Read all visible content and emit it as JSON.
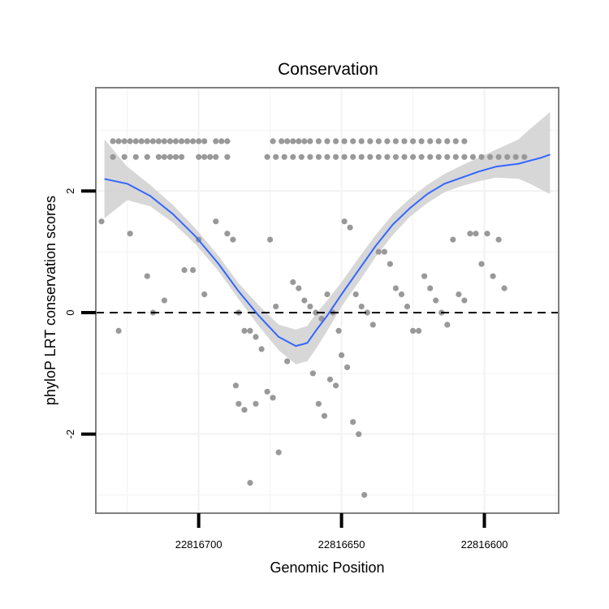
{
  "chart_data": {
    "type": "scatter",
    "title": "Conservation",
    "xlabel": "Genomic Position",
    "ylabel": "phyloP LRT conservation scores",
    "xlim": [
      22816736,
      22816574
    ],
    "ylim": [
      -3.3,
      3.7
    ],
    "x_reversed": true,
    "x_ticks": [
      22816700,
      22816650,
      22816600
    ],
    "x_tick_labels": [
      "22816700",
      "22816650",
      "22816600"
    ],
    "y_ticks": [
      -2,
      0,
      2
    ],
    "y_tick_labels": [
      "-2",
      "0",
      "2"
    ],
    "reference_line": {
      "y": 0,
      "style": "dashed"
    },
    "colors": {
      "points": "#999999",
      "smooth_line": "#3366FF",
      "ribbon": "#D3D3D3",
      "panel_border": "#7f7f7f",
      "grid": "#F2F2F2"
    },
    "points": [
      [
        22816730,
        2.82
      ],
      [
        22816728,
        2.82
      ],
      [
        22816726,
        2.82
      ],
      [
        22816724,
        2.82
      ],
      [
        22816722,
        2.82
      ],
      [
        22816720,
        2.82
      ],
      [
        22816718,
        2.82
      ],
      [
        22816716,
        2.82
      ],
      [
        22816714,
        2.82
      ],
      [
        22816712,
        2.82
      ],
      [
        22816710,
        2.82
      ],
      [
        22816708,
        2.82
      ],
      [
        22816706,
        2.82
      ],
      [
        22816704,
        2.82
      ],
      [
        22816702,
        2.82
      ],
      [
        22816700,
        2.82
      ],
      [
        22816698,
        2.82
      ],
      [
        22816694,
        2.82
      ],
      [
        22816692,
        2.82
      ],
      [
        22816690,
        2.82
      ],
      [
        22816730,
        2.56
      ],
      [
        22816726,
        2.56
      ],
      [
        22816722,
        2.56
      ],
      [
        22816718,
        2.56
      ],
      [
        22816714,
        2.56
      ],
      [
        22816712,
        2.56
      ],
      [
        22816710,
        2.56
      ],
      [
        22816708,
        2.56
      ],
      [
        22816706,
        2.56
      ],
      [
        22816700,
        2.56
      ],
      [
        22816698,
        2.56
      ],
      [
        22816696,
        2.56
      ],
      [
        22816694,
        2.56
      ],
      [
        22816690,
        2.56
      ],
      [
        22816674,
        2.82
      ],
      [
        22816671,
        2.82
      ],
      [
        22816669,
        2.82
      ],
      [
        22816667,
        2.82
      ],
      [
        22816665,
        2.82
      ],
      [
        22816663,
        2.82
      ],
      [
        22816661,
        2.82
      ],
      [
        22816658,
        2.82
      ],
      [
        22816655,
        2.82
      ],
      [
        22816652,
        2.82
      ],
      [
        22816649,
        2.82
      ],
      [
        22816646,
        2.82
      ],
      [
        22816643,
        2.82
      ],
      [
        22816640,
        2.82
      ],
      [
        22816637,
        2.82
      ],
      [
        22816634,
        2.82
      ],
      [
        22816631,
        2.82
      ],
      [
        22816628,
        2.82
      ],
      [
        22816625,
        2.82
      ],
      [
        22816622,
        2.82
      ],
      [
        22816619,
        2.82
      ],
      [
        22816616,
        2.82
      ],
      [
        22816613,
        2.82
      ],
      [
        22816610,
        2.82
      ],
      [
        22816607,
        2.82
      ],
      [
        22816676,
        2.56
      ],
      [
        22816673,
        2.56
      ],
      [
        22816670,
        2.56
      ],
      [
        22816667,
        2.56
      ],
      [
        22816664,
        2.56
      ],
      [
        22816661,
        2.56
      ],
      [
        22816658,
        2.56
      ],
      [
        22816655,
        2.56
      ],
      [
        22816652,
        2.56
      ],
      [
        22816649,
        2.56
      ],
      [
        22816646,
        2.56
      ],
      [
        22816643,
        2.56
      ],
      [
        22816640,
        2.56
      ],
      [
        22816637,
        2.56
      ],
      [
        22816634,
        2.56
      ],
      [
        22816631,
        2.56
      ],
      [
        22816628,
        2.56
      ],
      [
        22816625,
        2.56
      ],
      [
        22816622,
        2.56
      ],
      [
        22816619,
        2.56
      ],
      [
        22816616,
        2.56
      ],
      [
        22816613,
        2.56
      ],
      [
        22816610,
        2.56
      ],
      [
        22816607,
        2.56
      ],
      [
        22816604,
        2.56
      ],
      [
        22816601,
        2.56
      ],
      [
        22816598,
        2.56
      ],
      [
        22816595,
        2.56
      ],
      [
        22816592,
        2.56
      ],
      [
        22816589,
        2.56
      ],
      [
        22816586,
        2.56
      ],
      [
        22816724,
        1.3
      ],
      [
        22816716,
        0.0
      ],
      [
        22816718,
        0.6
      ],
      [
        22816712,
        0.2
      ],
      [
        22816728,
        -0.3
      ],
      [
        22816734,
        1.5
      ],
      [
        22816705,
        0.7
      ],
      [
        22816702,
        0.7
      ],
      [
        22816700,
        1.2
      ],
      [
        22816698,
        0.3
      ],
      [
        22816694,
        1.5
      ],
      [
        22816690,
        1.3
      ],
      [
        22816688,
        1.2
      ],
      [
        22816686,
        0.0
      ],
      [
        22816684,
        -0.3
      ],
      [
        22816682,
        -0.3
      ],
      [
        22816680,
        -0.4
      ],
      [
        22816678,
        -0.6
      ],
      [
        22816675,
        1.2
      ],
      [
        22816673,
        0.1
      ],
      [
        22816669,
        -0.8
      ],
      [
        22816667,
        0.5
      ],
      [
        22816665,
        0.4
      ],
      [
        22816663,
        0.2
      ],
      [
        22816661,
        0.1
      ],
      [
        22816659,
        0.0
      ],
      [
        22816657,
        -0.1
      ],
      [
        22816655,
        0.3
      ],
      [
        22816653,
        0.0
      ],
      [
        22816651,
        -0.3
      ],
      [
        22816649,
        1.5
      ],
      [
        22816647,
        1.4
      ],
      [
        22816645,
        0.3
      ],
      [
        22816643,
        0.1
      ],
      [
        22816641,
        0.0
      ],
      [
        22816639,
        -0.2
      ],
      [
        22816637,
        1.0
      ],
      [
        22816687,
        -1.2
      ],
      [
        22816686,
        -1.5
      ],
      [
        22816684,
        -1.6
      ],
      [
        22816682,
        -2.8
      ],
      [
        22816680,
        -1.5
      ],
      [
        22816676,
        -1.3
      ],
      [
        22816674,
        -1.4
      ],
      [
        22816672,
        -2.3
      ],
      [
        22816660,
        -1.0
      ],
      [
        22816658,
        -1.5
      ],
      [
        22816656,
        -1.7
      ],
      [
        22816654,
        -1.1
      ],
      [
        22816652,
        -1.2
      ],
      [
        22816650,
        -0.7
      ],
      [
        22816648,
        -0.9
      ],
      [
        22816646,
        -1.8
      ],
      [
        22816644,
        -2.0
      ],
      [
        22816642,
        -3.0
      ],
      [
        22816635,
        1.0
      ],
      [
        22816633,
        0.8
      ],
      [
        22816631,
        0.4
      ],
      [
        22816629,
        0.3
      ],
      [
        22816627,
        0.1
      ],
      [
        22816625,
        -0.3
      ],
      [
        22816623,
        -0.3
      ],
      [
        22816621,
        0.6
      ],
      [
        22816619,
        0.4
      ],
      [
        22816617,
        0.2
      ],
      [
        22816615,
        0.0
      ],
      [
        22816613,
        -0.2
      ],
      [
        22816611,
        1.2
      ],
      [
        22816609,
        0.3
      ],
      [
        22816607,
        0.2
      ],
      [
        22816605,
        1.3
      ],
      [
        22816603,
        1.3
      ],
      [
        22816601,
        0.8
      ],
      [
        22816599,
        1.3
      ],
      [
        22816597,
        0.6
      ],
      [
        22816595,
        1.2
      ],
      [
        22816593,
        0.4
      ]
    ],
    "smooth_fit": {
      "x": [
        22816733,
        22816725,
        22816717,
        22816709,
        22816701,
        22816693,
        22816686,
        22816679,
        22816672,
        22816666,
        22816662,
        22816659,
        22816655,
        22816650,
        22816644,
        22816638,
        22816632,
        22816626,
        22816620,
        22816614,
        22816608,
        22816602,
        22816596,
        22816588,
        22816584,
        22816580,
        22816577
      ],
      "y": [
        2.2,
        2.12,
        1.92,
        1.62,
        1.25,
        0.8,
        0.35,
        -0.05,
        -0.4,
        -0.55,
        -0.5,
        -0.3,
        -0.05,
        0.3,
        0.7,
        1.1,
        1.45,
        1.72,
        1.95,
        2.12,
        2.22,
        2.32,
        2.4,
        2.45,
        2.5,
        2.55,
        2.6
      ],
      "lower": [
        1.55,
        1.85,
        1.75,
        1.48,
        1.12,
        0.68,
        0.22,
        -0.22,
        -0.62,
        -0.85,
        -0.8,
        -0.6,
        -0.3,
        0.1,
        0.5,
        0.92,
        1.28,
        1.58,
        1.8,
        1.98,
        2.08,
        2.16,
        2.22,
        2.2,
        2.12,
        2.02,
        1.95
      ],
      "upper": [
        2.85,
        2.4,
        2.1,
        1.77,
        1.38,
        0.93,
        0.48,
        0.12,
        -0.2,
        -0.28,
        -0.22,
        -0.02,
        0.2,
        0.5,
        0.9,
        1.28,
        1.62,
        1.88,
        2.1,
        2.28,
        2.42,
        2.55,
        2.68,
        2.85,
        3.02,
        3.18,
        3.3
      ]
    }
  }
}
